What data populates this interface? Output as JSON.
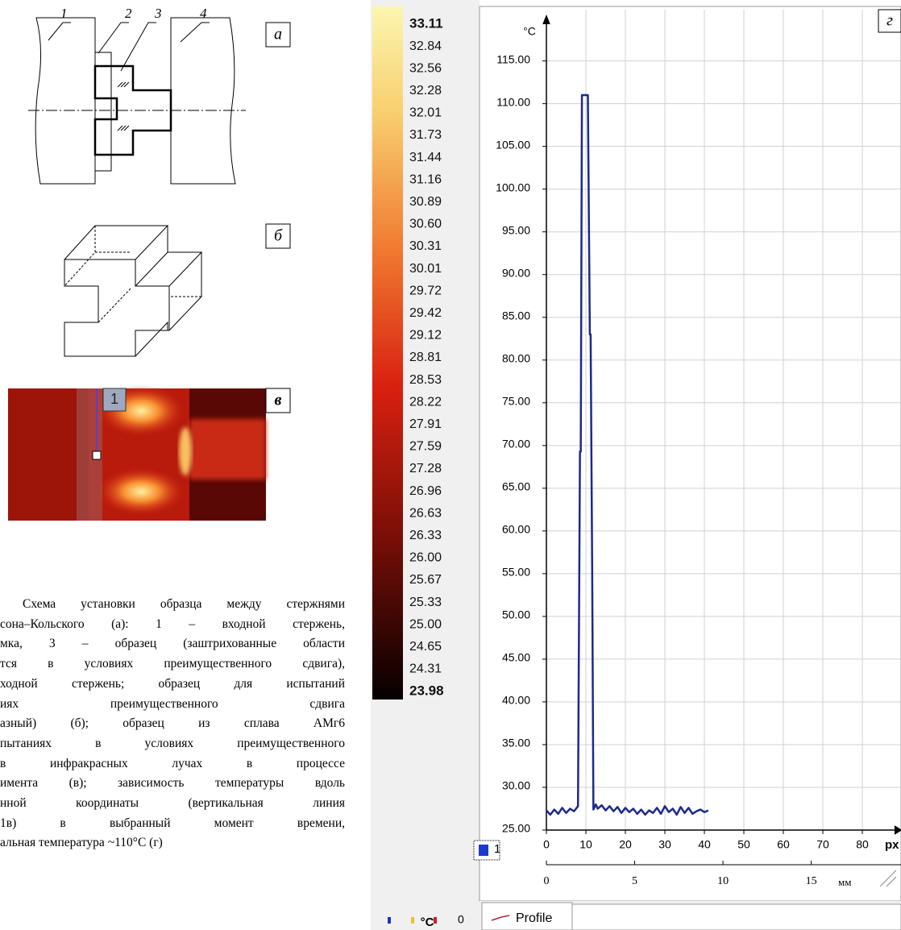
{
  "figure_a": {
    "panel": "а",
    "labels": [
      "1",
      "2",
      "3",
      "4"
    ]
  },
  "figure_b": {
    "panel": "б"
  },
  "figure_c": {
    "panel": "в",
    "marker": "1"
  },
  "caption": {
    "lines": [
      "Схема установки образца между стержнями",
      "сона–Кольского (а): 1 – входной стержень,",
      "мка, 3 – образец (заштрихованные области",
      "тся в условиях преимущественного сдвига),",
      "ходной стержень; образец для испытаний",
      "иях преимущественного сдвига",
      "азный) (б); образец из сплава АМг6",
      "пытаниях в условиях преимущественного",
      "в инфракрасных лучах в процессе",
      "имента (в); зависимость температуры вдоль",
      "нной координаты (вертикальная линия",
      "1в) в выбранный момент времени,",
      "альная температура ~110°С (г)"
    ]
  },
  "colorbar": {
    "labels": [
      "33.11",
      "32.84",
      "32.56",
      "32.28",
      "32.01",
      "31.73",
      "31.44",
      "31.16",
      "30.89",
      "30.60",
      "30.31",
      "30.01",
      "29.72",
      "29.42",
      "29.12",
      "28.81",
      "28.53",
      "28.22",
      "27.91",
      "27.59",
      "27.28",
      "26.96",
      "26.63",
      "26.33",
      "26.00",
      "25.67",
      "25.33",
      "25.00",
      "24.65",
      "24.31",
      "23.98"
    ],
    "count": "0",
    "unit": "°C"
  },
  "toolbar": {
    "tab": "Profile"
  },
  "chart_data": {
    "type": "line",
    "panel": "г",
    "ylabel": "°C",
    "xlabel": "px",
    "x2label": "мм",
    "x": [
      0,
      1,
      2,
      3,
      4,
      5,
      6,
      7,
      8,
      8.5,
      8.7,
      9,
      10.5,
      11,
      11.2,
      11.6,
      11.9,
      12.5,
      13,
      14,
      15,
      16,
      17,
      18,
      19,
      20,
      21,
      22,
      23,
      24,
      25,
      26,
      27,
      28,
      29,
      30,
      31,
      32,
      33,
      34,
      35,
      36,
      37,
      38,
      39,
      40,
      41
    ],
    "series": [
      {
        "name": "1",
        "color": "#1c2a8a",
        "values": [
          27.3,
          26.8,
          27.4,
          26.9,
          27.6,
          27,
          27.5,
          27.2,
          27.8,
          69.3,
          69.3,
          111,
          111,
          83,
          83,
          55,
          27.4,
          28,
          27.5,
          27.9,
          27.3,
          27.8,
          27.2,
          27.7,
          27,
          27.6,
          27.1,
          27.5,
          26.9,
          27.4,
          26.8,
          27.3,
          27,
          27.6,
          26.9,
          27.8,
          27.1,
          27.5,
          26.8,
          27.7,
          27,
          27.6,
          26.9,
          27.2,
          27.4,
          27.1,
          27.3
        ]
      }
    ],
    "xlim": [
      0,
      90
    ],
    "xticks": [
      0,
      10,
      20,
      30,
      40,
      50,
      60,
      70,
      80
    ],
    "x2lim": [
      0,
      20.13
    ],
    "x2ticks": [
      0,
      5,
      10,
      15
    ],
    "ylim": [
      25,
      121
    ],
    "yticks": [
      {
        "value": 25,
        "label": "25.00"
      },
      {
        "value": 30,
        "label": "30.00"
      },
      {
        "value": 35,
        "label": "35.00"
      },
      {
        "value": 40,
        "label": "40.00"
      },
      {
        "value": 45,
        "label": "45.00"
      },
      {
        "value": 50,
        "label": "50.00"
      },
      {
        "value": 55,
        "label": "55.00"
      },
      {
        "value": 60,
        "label": "60.00"
      },
      {
        "value": 65,
        "label": "65.00"
      },
      {
        "value": 70,
        "label": "70.00"
      },
      {
        "value": 75,
        "label": "75.00"
      },
      {
        "value": 80,
        "label": "80.00"
      },
      {
        "value": 85,
        "label": "85.00"
      },
      {
        "value": 90,
        "label": "90.00"
      },
      {
        "value": 95,
        "label": "95.00"
      },
      {
        "value": 100,
        "label": "100.00"
      },
      {
        "value": 105,
        "label": "105.00"
      },
      {
        "value": 110,
        "label": "110.00"
      },
      {
        "value": 115,
        "label": "115.00"
      }
    ],
    "grid": true
  }
}
